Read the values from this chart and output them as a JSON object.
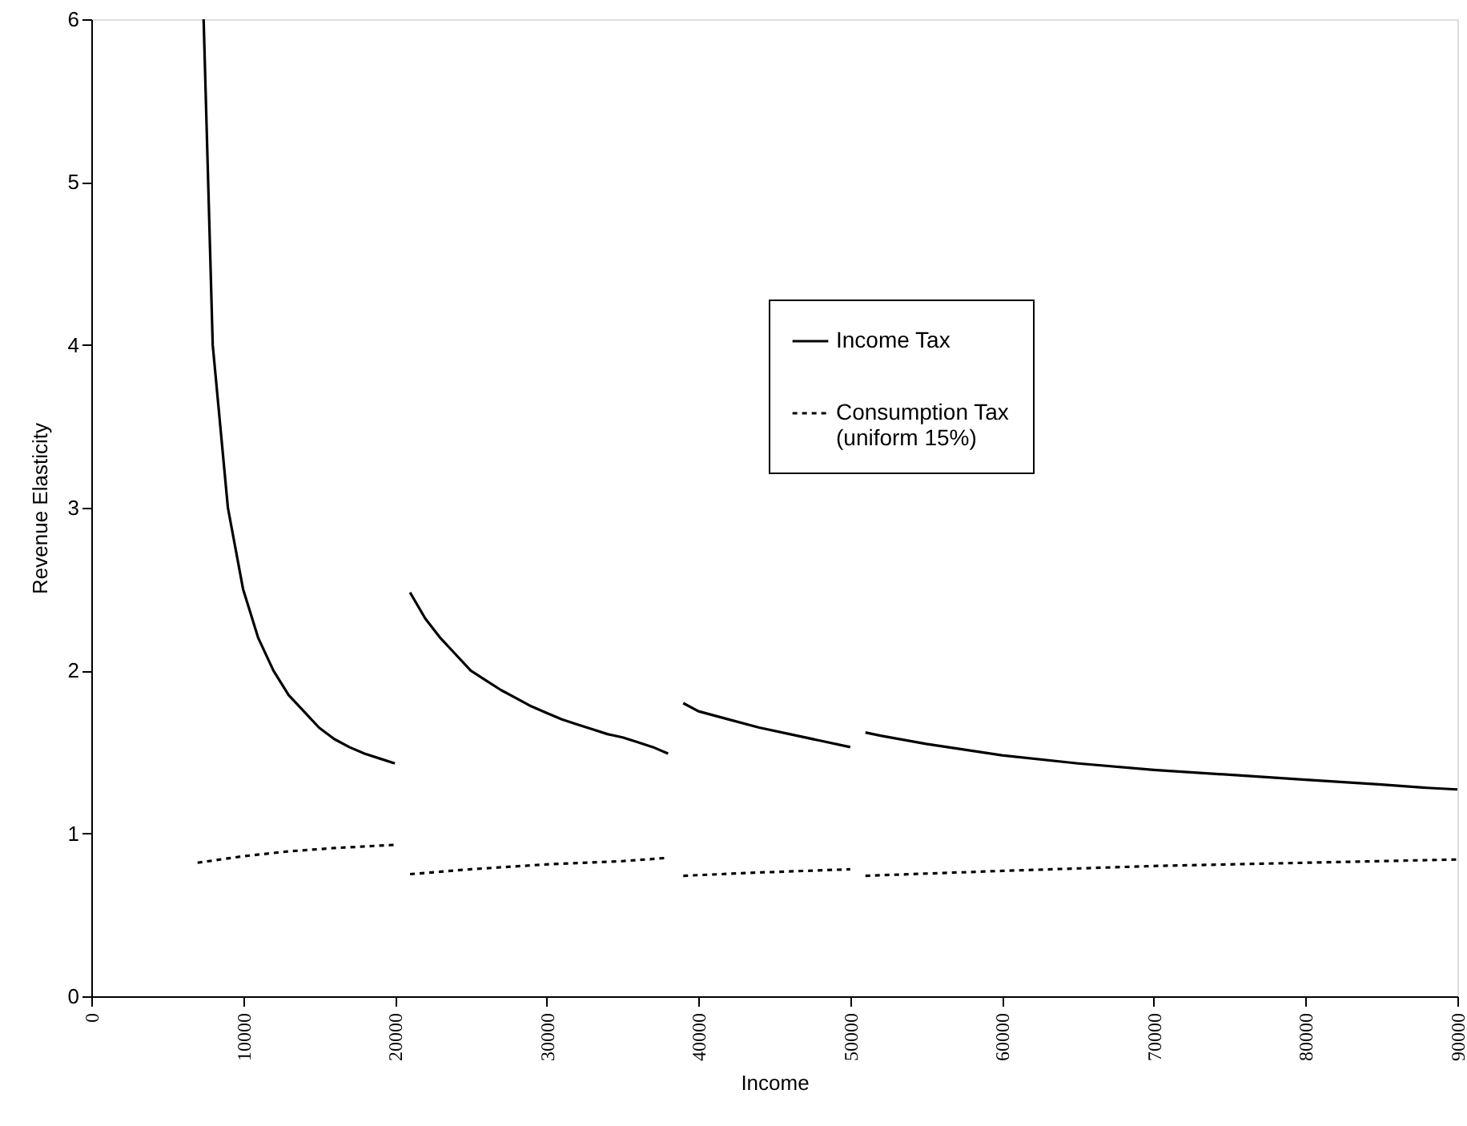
{
  "chart_data": {
    "type": "line",
    "xlabel": "Income",
    "ylabel": "Revenue Elasticity",
    "xlim": [
      0,
      90000
    ],
    "xticks": [
      0,
      10000,
      20000,
      30000,
      40000,
      50000,
      60000,
      70000,
      80000,
      90000
    ],
    "ylim": [
      0,
      6
    ],
    "yticks": [
      0,
      1,
      2,
      3,
      4,
      5,
      6
    ],
    "grid": false,
    "legend": "right",
    "marker": "none",
    "series": [
      {
        "name": "Income Tax",
        "color": "#000000",
        "line_style": "solid",
        "x": [
          7400,
          8000,
          9000,
          10000,
          11000,
          12000,
          13000,
          14000,
          15000,
          16000,
          17000,
          18000,
          19000,
          20000,
          20500,
          21000,
          22000,
          23000,
          24000,
          25000,
          26000,
          27000,
          28000,
          29000,
          30000,
          31000,
          32000,
          33000,
          34000,
          35000,
          36000,
          37000,
          38000,
          38500,
          39000,
          40000,
          42000,
          44000,
          46000,
          48000,
          50000,
          50500,
          51000,
          52000,
          55000,
          60000,
          65000,
          70000,
          75000,
          80000,
          85000,
          88000,
          90000
        ],
        "values": [
          6.0,
          4.0,
          3.0,
          2.5,
          2.2,
          2.0,
          1.85,
          1.75,
          1.65,
          1.58,
          1.53,
          1.49,
          1.46,
          1.43,
          null,
          2.48,
          2.32,
          2.2,
          2.1,
          2.0,
          1.94,
          1.88,
          1.83,
          1.78,
          1.74,
          1.7,
          1.67,
          1.64,
          1.61,
          1.59,
          1.56,
          1.53,
          1.49,
          null,
          1.8,
          1.75,
          1.7,
          1.65,
          1.61,
          1.57,
          1.53,
          null,
          1.62,
          1.6,
          1.55,
          1.48,
          1.43,
          1.39,
          1.36,
          1.33,
          1.3,
          1.28,
          1.27
        ]
      },
      {
        "name": "Consumption Tax\n(uniform 15%)",
        "color": "#000000",
        "line_style": "dotted",
        "x": [
          7000,
          10000,
          13000,
          16000,
          20000,
          20500,
          21000,
          25000,
          30000,
          35000,
          38000,
          38500,
          39000,
          44000,
          50000,
          50500,
          51000,
          60000,
          70000,
          80000,
          90000
        ],
        "values": [
          0.82,
          0.86,
          0.89,
          0.91,
          0.93,
          null,
          0.75,
          0.78,
          0.81,
          0.83,
          0.85,
          null,
          0.74,
          0.76,
          0.78,
          null,
          0.74,
          0.77,
          0.8,
          0.82,
          0.84
        ]
      }
    ]
  }
}
